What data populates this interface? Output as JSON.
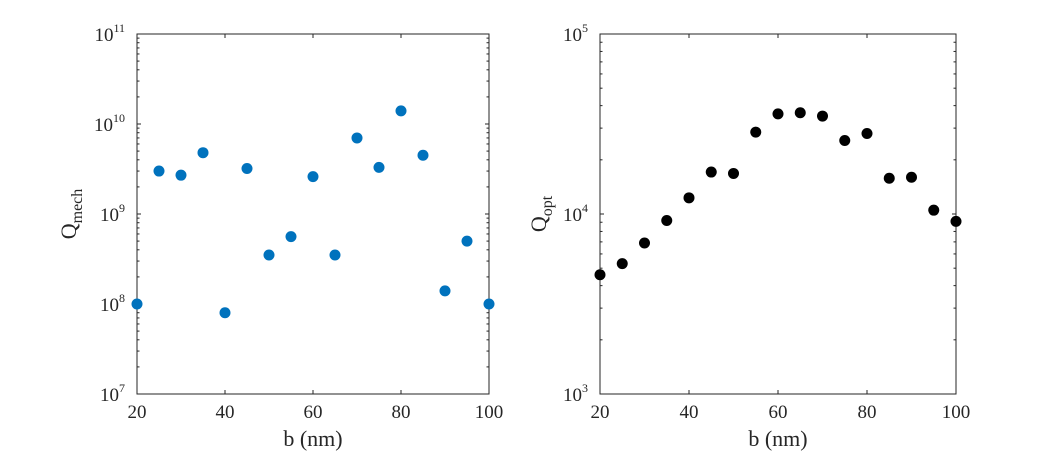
{
  "chart_data": [
    {
      "type": "scatter",
      "xlabel": "b (nm)",
      "ylabel_base": "Q",
      "ylabel_sub": "mech",
      "xlim": [
        20,
        100
      ],
      "ylim": [
        10000000,
        100000000000
      ],
      "yscale": "log",
      "grid": false,
      "marker_color": "#0072BD",
      "x_ticks": [
        "20",
        "40",
        "60",
        "80",
        "100"
      ],
      "y_tick_exponents": [
        "7",
        "8",
        "9",
        "10",
        "11"
      ],
      "x": [
        20,
        25,
        30,
        35,
        40,
        45,
        50,
        55,
        60,
        65,
        70,
        75,
        80,
        85,
        90,
        95,
        100
      ],
      "y": [
        100000000,
        3000000000,
        2700000000,
        4800000000,
        80000000,
        3200000000,
        350000000,
        560000000,
        2600000000,
        350000000,
        7000000000,
        3300000000,
        14000000000,
        4500000000,
        140000000,
        500000000,
        100000000
      ]
    },
    {
      "type": "scatter",
      "xlabel": "b (nm)",
      "ylabel_base": "Q",
      "ylabel_sub": "opt",
      "xlim": [
        20,
        100
      ],
      "ylim": [
        1000,
        100000
      ],
      "yscale": "log",
      "grid": false,
      "marker_color": "#000000",
      "x_ticks": [
        "20",
        "40",
        "60",
        "80",
        "100"
      ],
      "y_tick_exponents": [
        "3",
        "4",
        "5"
      ],
      "x": [
        20,
        25,
        30,
        35,
        40,
        45,
        50,
        55,
        60,
        65,
        70,
        75,
        80,
        85,
        90,
        95,
        100
      ],
      "y": [
        4600,
        5300,
        6900,
        9200,
        12300,
        17100,
        16800,
        28500,
        36000,
        36500,
        35000,
        25600,
        28000,
        15800,
        16000,
        10500,
        9100
      ]
    }
  ]
}
